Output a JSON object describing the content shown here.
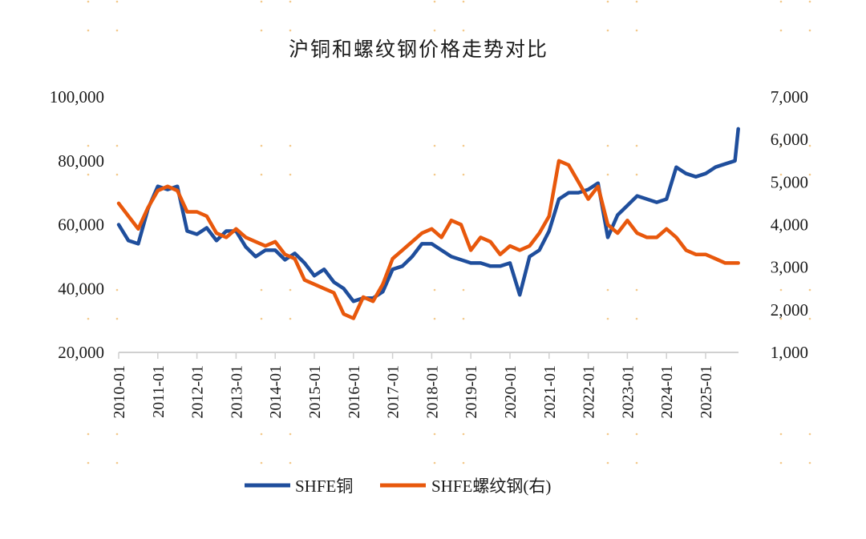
{
  "chart_data": {
    "type": "line",
    "title": "沪铜和螺纹钢价格走势对比",
    "xlabel": "",
    "ylabel": "",
    "y2label": "",
    "x_ticks": [
      "2010-01",
      "2011-01",
      "2012-01",
      "2013-01",
      "2014-01",
      "2015-01",
      "2016-01",
      "2017-01",
      "2018-01",
      "2019-01",
      "2020-01",
      "2021-01",
      "2022-01",
      "2023-01",
      "2024-01",
      "2025-01"
    ],
    "x_range": [
      "2010-01",
      "2025-11"
    ],
    "ylim": [
      20000,
      100000
    ],
    "y_ticks": [
      20000,
      40000,
      60000,
      80000,
      100000
    ],
    "y_tick_labels": [
      "20,000",
      "40,000",
      "60,000",
      "80,000",
      "100,000"
    ],
    "y2lim": [
      1000,
      7000
    ],
    "y2_ticks": [
      1000,
      2000,
      3000,
      4000,
      5000,
      6000,
      7000
    ],
    "y2_tick_labels": [
      "1,000",
      "2,000",
      "3,000",
      "4,000",
      "5,000",
      "6,000",
      "7,000"
    ],
    "grid": false,
    "legend_position": "bottom",
    "colors": {
      "copper": "#1f4e9c",
      "rebar": "#e8580c",
      "axis": "#d0d0d0",
      "dots": "#f3c98b"
    },
    "x": [
      "2010-01",
      "2010-04",
      "2010-07",
      "2010-10",
      "2011-01",
      "2011-04",
      "2011-07",
      "2011-10",
      "2012-01",
      "2012-04",
      "2012-07",
      "2012-10",
      "2013-01",
      "2013-04",
      "2013-07",
      "2013-10",
      "2014-01",
      "2014-04",
      "2014-07",
      "2014-10",
      "2015-01",
      "2015-04",
      "2015-07",
      "2015-10",
      "2016-01",
      "2016-04",
      "2016-07",
      "2016-10",
      "2017-01",
      "2017-04",
      "2017-07",
      "2017-10",
      "2018-01",
      "2018-04",
      "2018-07",
      "2018-10",
      "2019-01",
      "2019-04",
      "2019-07",
      "2019-10",
      "2020-01",
      "2020-04",
      "2020-07",
      "2020-10",
      "2021-01",
      "2021-04",
      "2021-07",
      "2021-10",
      "2022-01",
      "2022-04",
      "2022-07",
      "2022-10",
      "2023-01",
      "2023-04",
      "2023-07",
      "2023-10",
      "2024-01",
      "2024-04",
      "2024-07",
      "2024-10",
      "2025-01",
      "2025-04",
      "2025-07",
      "2025-10",
      "2025-11"
    ],
    "series": [
      {
        "name": "SHFE铜",
        "axis": "left",
        "values": [
          60000,
          55000,
          54000,
          65000,
          72000,
          71000,
          72000,
          58000,
          57000,
          59000,
          55000,
          58000,
          58000,
          53000,
          50000,
          52000,
          52000,
          49000,
          51000,
          48000,
          44000,
          46000,
          42000,
          40000,
          36000,
          37000,
          37000,
          39000,
          46000,
          47000,
          50000,
          54000,
          54000,
          52000,
          50000,
          49000,
          48000,
          48000,
          47000,
          47000,
          48000,
          38000,
          50000,
          52000,
          58000,
          68000,
          70000,
          70000,
          71000,
          73000,
          56000,
          63000,
          66000,
          69000,
          68000,
          67000,
          68000,
          78000,
          76000,
          75000,
          76000,
          78000,
          79000,
          80000,
          90000
        ]
      },
      {
        "name": "SHFE螺纹钢(右)",
        "axis": "right",
        "values": [
          4500,
          4200,
          3900,
          4400,
          4800,
          4900,
          4800,
          4300,
          4300,
          4200,
          3800,
          3700,
          3900,
          3700,
          3600,
          3500,
          3600,
          3300,
          3200,
          2700,
          2600,
          2500,
          2400,
          1900,
          1800,
          2300,
          2200,
          2600,
          3200,
          3400,
          3600,
          3800,
          3900,
          3700,
          4100,
          4000,
          3400,
          3700,
          3600,
          3300,
          3500,
          3400,
          3500,
          3800,
          4200,
          5500,
          5400,
          5000,
          4600,
          4900,
          4000,
          3800,
          4100,
          3800,
          3700,
          3700,
          3900,
          3700,
          3400,
          3300,
          3300,
          3200,
          3100,
          3100,
          3100
        ]
      }
    ],
    "legend": [
      {
        "label": "SHFE铜",
        "series": 0
      },
      {
        "label": "SHFE螺纹钢(右)",
        "series": 1
      }
    ]
  }
}
